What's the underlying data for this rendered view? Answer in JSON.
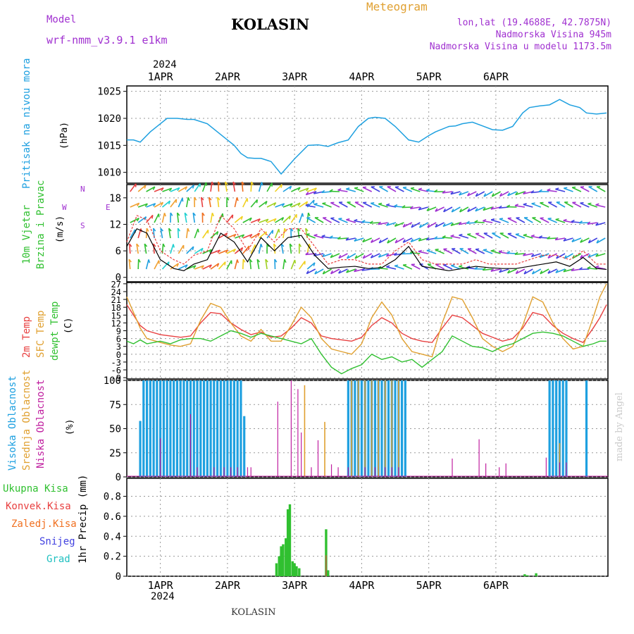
{
  "header": {
    "model_label": "Model",
    "model_name": "wrf-nmm_v3.9.1  e1km",
    "station": "KOLASIN",
    "product": "Meteogram",
    "lonlat": "lon,lat (19.4688E, 42.7875N)",
    "altitude": "Nadmorska Visina 945m",
    "model_altitude": "Nadmorska Visina u modelu 1173.5m",
    "year_top": "2024",
    "year_bottom": "2024",
    "footer_station": "KOLASIN",
    "credit": "made by Angel"
  },
  "colors": {
    "pressure": "#1ea0e0",
    "t2m": "#e84040",
    "sfc": "#e0a030",
    "dewpt": "#30c030",
    "high_cloud": "#1ea0e0",
    "mid_cloud": "#e0a030",
    "low_cloud": "#c020a0",
    "total_precip": "#30c030",
    "conv_precip": "#e84040",
    "frz_precip": "#f07020",
    "snow": "#4040e0",
    "hail": "#20c0c0",
    "wind_purple": "#a030d0"
  },
  "chart_data": [
    {
      "type": "line",
      "panel": "pressure",
      "ylabel": "Pritisak na nivou mora",
      "yunit": "(hPa)",
      "ylim": [
        1008,
        1026
      ],
      "yticks": [
        1010,
        1015,
        1020,
        1025
      ],
      "x_ticks": [
        "1APR",
        "2APR",
        "3APR",
        "4APR",
        "5APR",
        "6APR"
      ],
      "x_unit": "days from 2024-03-31 12:00",
      "x": [
        0,
        0.1,
        0.2,
        0.35,
        0.5,
        0.6,
        0.75,
        0.9,
        1.0,
        1.2,
        1.35,
        1.5,
        1.6,
        1.7,
        1.8,
        1.9,
        2.0,
        2.15,
        2.3,
        2.5,
        2.7,
        2.85,
        3.0,
        3.15,
        3.3,
        3.45,
        3.6,
        3.7,
        3.85,
        4.0,
        4.2,
        4.35,
        4.5,
        4.6,
        4.8,
        4.9,
        5.0,
        5.15,
        5.3,
        5.45,
        5.6,
        5.75,
        5.9,
        6.0,
        6.15,
        6.3,
        6.45,
        6.6,
        6.75,
        6.85,
        7.0,
        7.15
      ],
      "series": [
        {
          "values": [
            1016,
            1016,
            1015.6,
            1017.5,
            1019,
            1020,
            1020,
            1019.8,
            1019.8,
            1019,
            1017.5,
            1016,
            1015,
            1013.5,
            1012.7,
            1012.6,
            1012.6,
            1012,
            1009.7,
            1012.5,
            1015,
            1015.1,
            1014.8,
            1015.5,
            1016,
            1018.5,
            1020,
            1020.2,
            1020,
            1018.5,
            1016,
            1015.6,
            1016.8,
            1017.5,
            1018.5,
            1018.6,
            1019,
            1019.3,
            1018.6,
            1017.9,
            1017.8,
            1018.5,
            1021,
            1022,
            1022.3,
            1022.5,
            1023.5,
            1022.5,
            1022,
            1021,
            1020.8,
            1021
          ]
        }
      ]
    },
    {
      "type": "line",
      "panel": "wind",
      "ylabel": "10m Vjetar Brzina i Pravac",
      "yunit": "(m/s)",
      "compass": [
        "N",
        "W",
        "E",
        "S"
      ],
      "ylim": [
        -1,
        21
      ],
      "yticks": [
        0,
        6,
        12,
        18
      ],
      "x": [
        0,
        0.15,
        0.3,
        0.5,
        0.7,
        0.85,
        1.0,
        1.2,
        1.4,
        1.6,
        1.8,
        2.0,
        2.2,
        2.4,
        2.6,
        2.8,
        3.0,
        3.2,
        3.4,
        3.6,
        3.8,
        4.0,
        4.2,
        4.4,
        4.6,
        4.8,
        5.0,
        5.2,
        5.4,
        5.6,
        5.8,
        6.0,
        6.2,
        6.4,
        6.6,
        6.8,
        7.0,
        7.15
      ],
      "series": [
        {
          "name": "speed",
          "values": [
            7,
            11,
            10,
            4,
            2,
            1.5,
            3,
            4,
            10,
            8,
            3.5,
            9,
            6,
            9,
            9.5,
            5,
            2,
            2.3,
            2.5,
            2,
            2.2,
            4,
            7,
            2.5,
            2,
            1.5,
            2,
            2.5,
            2.2,
            2,
            2,
            2.5,
            3,
            3.5,
            2.5,
            4.5,
            2,
            1.8
          ]
        },
        {
          "name": "gust",
          "values": [
            8,
            14,
            13,
            6,
            4,
            3,
            5,
            6,
            14,
            11,
            6,
            11,
            8,
            11,
            11,
            7,
            3,
            4,
            4,
            3,
            3,
            6,
            8,
            4,
            3,
            3,
            3,
            4,
            3,
            3,
            3,
            4,
            5,
            5,
            4,
            6,
            3,
            3
          ]
        }
      ]
    },
    {
      "type": "line",
      "panel": "temperature",
      "yunit": "(C)",
      "ylim": [
        -9.5,
        27.5
      ],
      "yticks": [
        -9,
        -6,
        -3,
        0,
        3,
        6,
        9,
        12,
        15,
        18,
        21,
        24,
        27
      ],
      "x": [
        0,
        0.1,
        0.2,
        0.3,
        0.5,
        0.65,
        0.8,
        0.95,
        1.1,
        1.25,
        1.4,
        1.55,
        1.7,
        1.85,
        2.0,
        2.15,
        2.3,
        2.45,
        2.6,
        2.75,
        2.9,
        3.05,
        3.2,
        3.35,
        3.5,
        3.65,
        3.8,
        3.95,
        4.1,
        4.25,
        4.4,
        4.55,
        4.7,
        4.85,
        5.0,
        5.15,
        5.3,
        5.45,
        5.6,
        5.75,
        5.9,
        6.05,
        6.2,
        6.35,
        6.5,
        6.65,
        6.8,
        6.95,
        7.05,
        7.15
      ],
      "series": [
        {
          "name": "2m Temp",
          "values": [
            19,
            15,
            11,
            9,
            7.5,
            7,
            6.5,
            7,
            12,
            16,
            15.5,
            12,
            9.5,
            7.5,
            8.5,
            6.5,
            7,
            10,
            14,
            12,
            7,
            6,
            5.5,
            5,
            6.5,
            11,
            14,
            12,
            8,
            6,
            5,
            4.5,
            10,
            15,
            14,
            11,
            8,
            6.5,
            5,
            6,
            10,
            16,
            15,
            11,
            8,
            6,
            4.5,
            10,
            14,
            19
          ]
        },
        {
          "name": "SFC Temp",
          "values": [
            22,
            16,
            10,
            6,
            4.5,
            3.5,
            3,
            4,
            13,
            19.5,
            18,
            12,
            7,
            5,
            9.5,
            5,
            5,
            11,
            18,
            14,
            6,
            2,
            1,
            0,
            4,
            14,
            20,
            15,
            6,
            1,
            0,
            -1,
            12,
            22,
            21,
            14,
            6,
            3,
            1,
            3,
            11,
            22,
            20,
            12,
            6,
            2,
            3,
            14,
            22,
            27
          ]
        },
        {
          "name": "dewpt Temp",
          "values": [
            5,
            4,
            5.5,
            4,
            5,
            4,
            5.5,
            6,
            6,
            5,
            7,
            9,
            8,
            6.5,
            8,
            7,
            6,
            5,
            4,
            6,
            0,
            -5,
            -7.5,
            -5.5,
            -4,
            0,
            -2,
            -1,
            -3,
            -2,
            -5,
            -2,
            1,
            7,
            5,
            3,
            2.5,
            1,
            3,
            4,
            6,
            8,
            8.5,
            8,
            7,
            5,
            3,
            4,
            5,
            5
          ]
        }
      ]
    },
    {
      "type": "bar",
      "panel": "clouds",
      "ylabels": [
        "Visoka Oblacnost",
        "Srednja Oblacnost",
        "Niska Oblacnost"
      ],
      "yunit": "(%)",
      "ylim": [
        0,
        100
      ],
      "yticks": [
        0,
        25,
        50,
        75,
        100
      ],
      "high": {
        "x": [
          0.2,
          0.25,
          0.3,
          0.35,
          0.4,
          0.45,
          0.5,
          0.55,
          0.6,
          0.65,
          0.7,
          0.75,
          0.8,
          0.85,
          0.9,
          0.95,
          1.0,
          1.05,
          1.1,
          1.15,
          1.2,
          1.25,
          1.3,
          1.35,
          1.4,
          1.45,
          1.5,
          1.55,
          1.6,
          1.65,
          1.7,
          1.75,
          3.3,
          3.35,
          3.4,
          3.45,
          3.5,
          3.55,
          3.6,
          3.65,
          3.7,
          3.75,
          3.8,
          3.85,
          3.9,
          3.95,
          4.0,
          4.05,
          4.1,
          4.15,
          6.3,
          6.35,
          6.4,
          6.45,
          6.5,
          6.55,
          6.85
        ],
        "values": [
          58,
          100,
          100,
          100,
          100,
          100,
          100,
          100,
          100,
          100,
          100,
          100,
          100,
          100,
          100,
          100,
          100,
          100,
          100,
          100,
          100,
          100,
          100,
          100,
          100,
          100,
          100,
          100,
          100,
          100,
          100,
          63,
          100,
          100,
          100,
          100,
          100,
          100,
          100,
          100,
          100,
          100,
          100,
          100,
          100,
          100,
          100,
          100,
          100,
          100,
          100,
          100,
          100,
          100,
          100,
          100,
          100
        ]
      },
      "mid": {
        "x": [
          2.65,
          2.95,
          3.35,
          3.45,
          3.55,
          3.65,
          3.75,
          3.85,
          3.95,
          4.05,
          6.45
        ],
        "values": [
          95,
          57,
          100,
          100,
          100,
          100,
          100,
          100,
          100,
          100,
          35
        ]
      },
      "low": {
        "x": [
          0.5,
          0.95,
          1.05,
          1.3,
          1.45,
          1.55,
          1.65,
          1.8,
          1.85,
          2.25,
          2.45,
          2.55,
          2.6,
          2.75,
          2.85,
          3.05,
          3.15,
          3.3,
          3.55,
          3.7,
          3.85,
          3.95,
          4.05,
          4.85,
          5.25,
          5.35,
          5.55,
          5.65,
          6.25,
          6.45,
          6.55
        ],
        "values": [
          40,
          65,
          10,
          10,
          10,
          10,
          10,
          10,
          10,
          78,
          100,
          91,
          46,
          10,
          38,
          13,
          10,
          10,
          10,
          10,
          10,
          10,
          10,
          19,
          39,
          14,
          10,
          14,
          20,
          15,
          15
        ]
      }
    },
    {
      "type": "bar",
      "panel": "precip",
      "ylabel": "1hr Precip",
      "yunit": "(mm)",
      "legend": [
        "Ukupna Kisa",
        "Konvek.Kisa",
        "Zaledj.Kisa",
        "Snijeg",
        "Grad"
      ],
      "ylim": [
        0,
        0.98
      ],
      "yticks": [
        0,
        0.2,
        0.4,
        0.6,
        0.8
      ],
      "total": {
        "x": [
          1.5,
          1.53,
          1.57,
          1.6,
          1.63,
          1.67,
          1.7,
          1.73,
          1.77,
          1.8,
          1.87,
          2.23,
          2.27,
          2.3,
          2.33,
          2.37,
          2.4,
          2.43,
          2.47,
          2.5,
          2.53,
          2.57,
          2.6,
          2.63,
          2.97,
          3.0,
          3.03,
          5.93,
          5.97,
          6.1
        ],
        "values": [
          0,
          0,
          0,
          0,
          0,
          0,
          0,
          0,
          0,
          0,
          0,
          0.13,
          0.2,
          0.3,
          0.32,
          0.38,
          0.67,
          0.72,
          0.15,
          0.13,
          0.1,
          0.08,
          0,
          0,
          0.47,
          0.06,
          0,
          0.02,
          0.01,
          0.03
        ]
      },
      "conv": {
        "x": [
          2.97
        ],
        "values": [
          0.21
        ]
      }
    }
  ]
}
